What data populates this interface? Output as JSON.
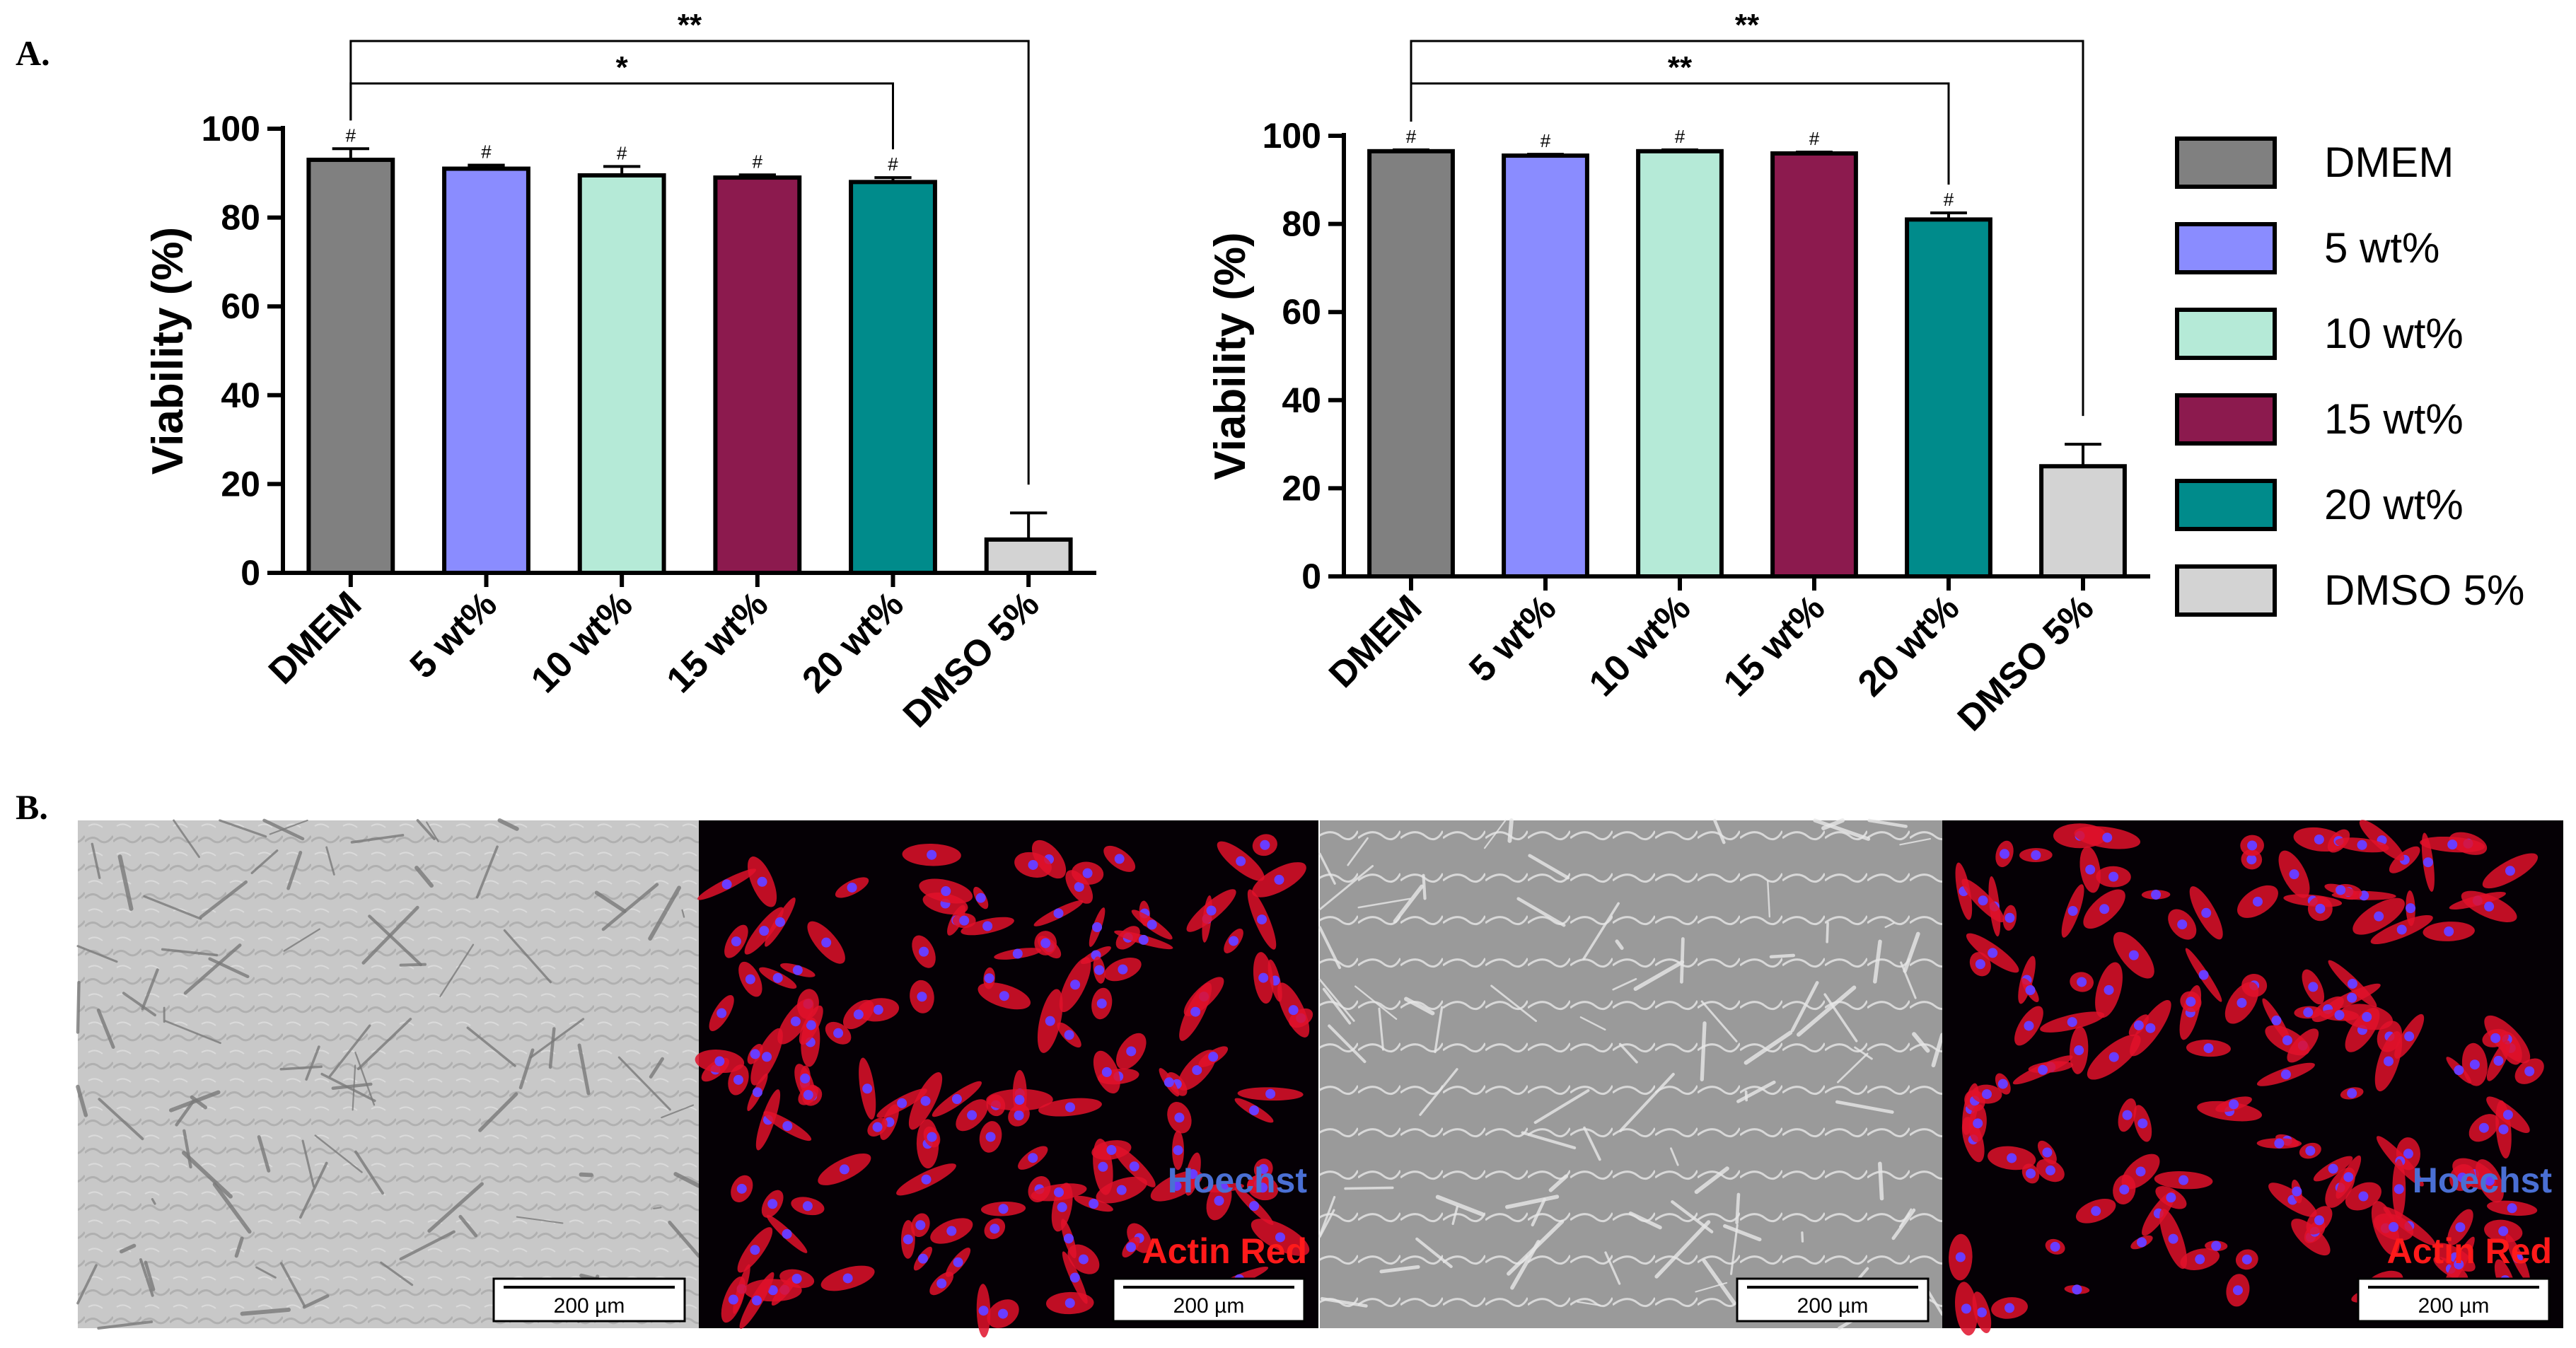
{
  "panel_labels": {
    "a": "A.",
    "b": "B."
  },
  "chart_data": [
    {
      "type": "bar",
      "ylabel": "Viability (%)",
      "ylim": [
        0,
        100
      ],
      "yticks": [
        0,
        20,
        40,
        60,
        80,
        100
      ],
      "categories": [
        "DMEM",
        "5 wt%",
        "10 wt%",
        "15 wt%",
        "20 wt%",
        "DMSO 5%"
      ],
      "values": [
        93,
        91,
        89.5,
        89,
        88,
        7.5
      ],
      "errors": [
        2.5,
        0.8,
        2.0,
        0.6,
        1.0,
        6.0
      ],
      "marks": [
        "#",
        "#",
        "#",
        "#",
        "#",
        ""
      ],
      "brackets": [
        {
          "from": 0,
          "to": 5,
          "label": "**"
        },
        {
          "from": 0,
          "to": 4,
          "label": "*"
        }
      ]
    },
    {
      "type": "bar",
      "ylabel": "Viability (%)",
      "ylim": [
        0,
        100
      ],
      "yticks": [
        0,
        20,
        40,
        60,
        80,
        100
      ],
      "categories": [
        "DMEM",
        "5 wt%",
        "10 wt%",
        "15 wt%",
        "20 wt%",
        "DMSO 5%"
      ],
      "values": [
        96.5,
        95.5,
        96.5,
        96,
        81,
        25
      ],
      "errors": [
        0.3,
        0.3,
        0.3,
        0.3,
        1.5,
        5.0
      ],
      "marks": [
        "#",
        "#",
        "#",
        "#",
        "#",
        ""
      ],
      "brackets": [
        {
          "from": 0,
          "to": 5,
          "label": "**"
        },
        {
          "from": 0,
          "to": 4,
          "label": "**"
        }
      ]
    }
  ],
  "legend": [
    {
      "label": "DMEM",
      "color": "#808080"
    },
    {
      "label": "5 wt%",
      "color": "#8a8cff"
    },
    {
      "label": "10 wt%",
      "color": "#b5ead7"
    },
    {
      "label": "15 wt%",
      "color": "#8c1a4e"
    },
    {
      "label": "20 wt%",
      "color": "#008b8b"
    },
    {
      "label": "DMSO 5%",
      "color": "#d3d3d3"
    }
  ],
  "micrographs": [
    {
      "kind": "brightfield",
      "scalebar": "200 µm"
    },
    {
      "kind": "fluorescence",
      "scalebar": "200 µm",
      "stain_top": "Hoechst",
      "stain_bottom": "Actin Red",
      "stain_top_color": "#4a6fd4",
      "stain_bottom_color": "#ff1a1a"
    },
    {
      "kind": "phase-contrast",
      "scalebar": "200 µm"
    },
    {
      "kind": "fluorescence",
      "scalebar": "200 µm",
      "stain_top": "Hoechst",
      "stain_bottom": "Actin Red",
      "stain_top_color": "#4a6fd4",
      "stain_bottom_color": "#ff1a1a"
    }
  ]
}
